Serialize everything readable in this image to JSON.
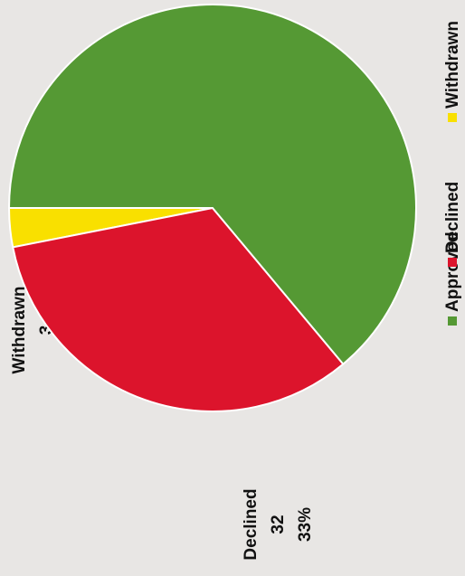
{
  "chart_data": {
    "type": "pie",
    "categories": [
      "Approved",
      "Declined",
      "Withdrawn"
    ],
    "values": [
      62,
      32,
      3
    ],
    "percents": [
      null,
      33,
      3
    ],
    "colors": [
      "#559934",
      "#dc142c",
      "#f9e000"
    ],
    "legend": "right"
  }
}
